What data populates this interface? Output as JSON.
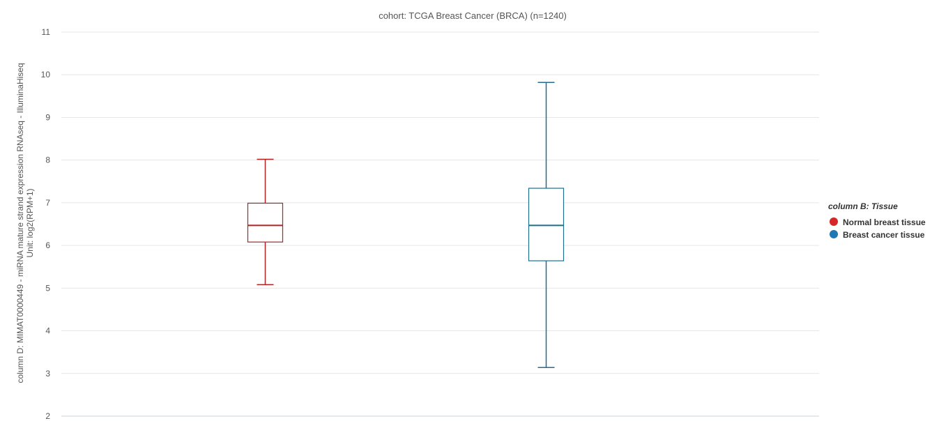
{
  "chart_data": {
    "type": "boxplot",
    "title": "cohort: TCGA Breast Cancer (BRCA) (n=1240)",
    "ylabel_line1": "column D: MIMAT0000449 - miRNA mature strand expression RNAseq - IlluminaHiseq",
    "ylabel_line2": "Unit: log2(RPM+1)",
    "ylim": [
      2,
      11
    ],
    "yticks": [
      "2",
      "3",
      "4",
      "5",
      "6",
      "7",
      "8",
      "9",
      "10",
      "11"
    ],
    "grid": true,
    "legend": {
      "title": "column B: Tissue",
      "placement": "right"
    },
    "series": [
      {
        "name": "Normal breast tissue",
        "color": "#b22222",
        "legend_color": "#d62728",
        "min": 5.08,
        "q1": 6.08,
        "median": 6.47,
        "q3": 6.99,
        "max": 8.02
      },
      {
        "name": "Breast cancer tissue",
        "color": "#1f6e8f",
        "legend_color": "#1f77b4",
        "min": 3.14,
        "q1": 5.64,
        "median": 6.47,
        "q3": 7.34,
        "max": 9.82
      }
    ]
  }
}
